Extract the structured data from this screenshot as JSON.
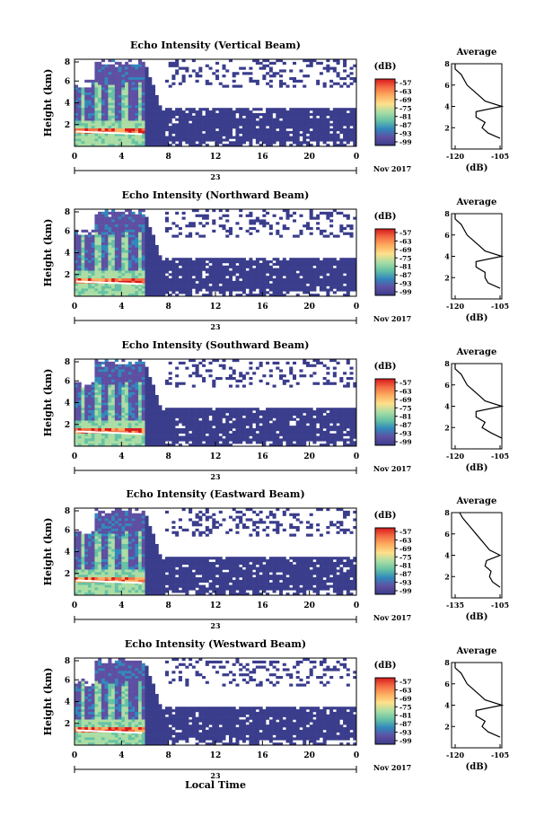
{
  "figure": {
    "xlabel": "Local Time",
    "date_label": "23",
    "month_label": "Nov 2017",
    "ylabel": "Height (km)",
    "colorbar_unit": "(dB)",
    "avg_title": "Average",
    "avg_xlabel": "(dB)"
  },
  "colorbar": {
    "ticks": [
      "-57",
      "-63",
      "-69",
      "-75",
      "-81",
      "-87",
      "-93",
      "-99"
    ],
    "colors": [
      "#d7191c",
      "#f46d43",
      "#fdae61",
      "#fee08b",
      "#abdda4",
      "#66c2a5",
      "#3288bd",
      "#5e4fa2",
      "#3a3d8c"
    ]
  },
  "chart_data": [
    {
      "type": "heatmap",
      "title": "Echo Intensity (Vertical Beam)",
      "xlabel": "Local Time",
      "ylabel": "Height (km)",
      "x_ticks": [
        "0",
        "4",
        "8",
        "12",
        "16",
        "20",
        "0"
      ],
      "y_ticks": [
        "2",
        "4",
        "6",
        "8"
      ],
      "avg_x_ticks": [
        "-120",
        "-105"
      ],
      "avg_y_ticks": [
        "2",
        "4",
        "6",
        "8"
      ],
      "avg_profile": {
        "height_km": [
          1,
          1.5,
          2,
          2.5,
          3,
          3.5,
          4,
          4.5,
          5,
          5.5,
          6,
          6.5,
          7,
          7.5,
          8
        ],
        "db": [
          -105,
          -109,
          -111,
          -110,
          -113,
          -113,
          -104,
          -110,
          -112,
          -114,
          -116,
          -117,
          -118,
          -120,
          -120
        ]
      }
    },
    {
      "type": "heatmap",
      "title": "Echo Intensity (Northward Beam)",
      "xlabel": "Local Time",
      "ylabel": "Height (km)",
      "x_ticks": [
        "0",
        "4",
        "8",
        "12",
        "16",
        "20",
        "0"
      ],
      "y_ticks": [
        "2",
        "4",
        "6",
        "8"
      ],
      "avg_x_ticks": [
        "-120",
        "-105"
      ],
      "avg_y_ticks": [
        "2",
        "4",
        "6",
        "8"
      ],
      "avg_profile": {
        "height_km": [
          1,
          1.5,
          2,
          2.5,
          3,
          3.5,
          4,
          4.5,
          5,
          5.5,
          6,
          6.5,
          7,
          7.5,
          8
        ],
        "db": [
          -105,
          -109,
          -110,
          -110,
          -113,
          -113,
          -104,
          -110,
          -112,
          -114,
          -116,
          -117,
          -118,
          -120,
          -120
        ]
      }
    },
    {
      "type": "heatmap",
      "title": "Echo Intensity (Southward Beam)",
      "xlabel": "Local Time",
      "ylabel": "Height (km)",
      "x_ticks": [
        "0",
        "4",
        "8",
        "12",
        "16",
        "20",
        "0"
      ],
      "y_ticks": [
        "2",
        "4",
        "6",
        "8"
      ],
      "avg_x_ticks": [
        "-120",
        "-105"
      ],
      "avg_y_ticks": [
        "2",
        "4",
        "6",
        "8"
      ],
      "avg_profile": {
        "height_km": [
          1,
          1.5,
          2,
          2.5,
          3,
          3.5,
          4,
          4.5,
          5,
          5.5,
          6,
          6.5,
          7,
          7.5,
          8
        ],
        "db": [
          -104,
          -108,
          -111,
          -110,
          -113,
          -113,
          -104,
          -110,
          -112,
          -114,
          -116,
          -117,
          -118,
          -120,
          -120
        ]
      }
    },
    {
      "type": "heatmap",
      "title": "Echo Intensity (Eastward Beam)",
      "xlabel": "Local Time",
      "ylabel": "Height (km)",
      "x_ticks": [
        "0",
        "4",
        "8",
        "12",
        "16",
        "20",
        "0"
      ],
      "y_ticks": [
        "2",
        "4",
        "6",
        "8"
      ],
      "avg_x_ticks": [
        "-135",
        "-105"
      ],
      "avg_y_ticks": [
        "2",
        "4",
        "6",
        "8"
      ],
      "avg_profile": {
        "height_km": [
          1,
          1.5,
          2,
          2.5,
          3,
          3.5,
          4,
          4.5,
          5,
          5.5,
          6,
          6.5,
          7,
          7.5,
          8
        ],
        "db": [
          -105,
          -110,
          -112,
          -111,
          -115,
          -114,
          -105,
          -112,
          -115,
          -118,
          -121,
          -124,
          -127,
          -130,
          -132
        ]
      }
    },
    {
      "type": "heatmap",
      "title": "Echo Intensity (Westward Beam)",
      "xlabel": "Local Time",
      "ylabel": "Height (km)",
      "x_ticks": [
        "0",
        "4",
        "8",
        "12",
        "16",
        "20",
        "0"
      ],
      "y_ticks": [
        "2",
        "4",
        "6",
        "8"
      ],
      "avg_x_ticks": [
        "-120",
        "-105"
      ],
      "avg_y_ticks": [
        "2",
        "4",
        "6",
        "8"
      ],
      "avg_profile": {
        "height_km": [
          1,
          1.5,
          2,
          2.5,
          3,
          3.5,
          4,
          4.5,
          5,
          5.5,
          6,
          6.5,
          7,
          7.5,
          8
        ],
        "db": [
          -105,
          -109,
          -111,
          -110,
          -113,
          -113,
          -104,
          -110,
          -112,
          -114,
          -116,
          -117,
          -118,
          -120,
          -120
        ]
      }
    }
  ]
}
